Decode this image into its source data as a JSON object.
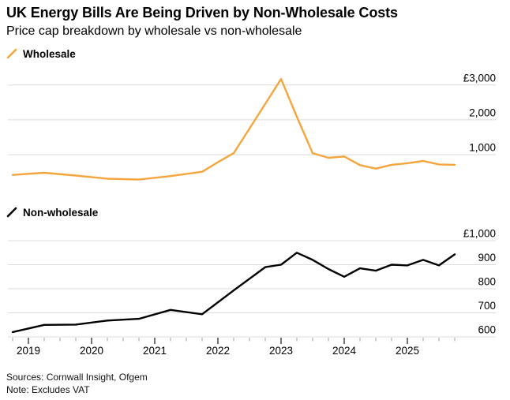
{
  "header": {
    "title": "UK Energy Bills Are Being Driven by Non-Wholesale Costs",
    "subtitle": "Price cap breakdown by wholesale vs non-wholesale"
  },
  "footer": {
    "sources": "Sources: Cornwall Insight, Ofgem",
    "note": "Note: Excludes VAT"
  },
  "colors": {
    "wholesale": "#F6A53D",
    "non_wholesale": "#000000",
    "gridline": "#DCDCDC",
    "tick_minor": "#A0A0A0",
    "tick_major": "#2B2B2B",
    "text": "#000000"
  },
  "chart_data": {
    "type": "line",
    "title": "UK Energy Bills Are Being Driven by Non-Wholesale Costs",
    "subtitle": "Price cap breakdown by wholesale vs non-wholesale",
    "currency": "£",
    "x_axis": {
      "tick_frequency": "quarterly",
      "year_labels": [
        "2019",
        "2020",
        "2021",
        "2022",
        "2023",
        "2024",
        "2025"
      ],
      "range": [
        "2018-10",
        "2025-10"
      ]
    },
    "charts": [
      {
        "name": "Wholesale",
        "legend": "Wholesale",
        "color": "#F6A53D",
        "ylim": [
          0,
          3300
        ],
        "gridlines": [
          {
            "value": 3000,
            "label": "£3,000"
          },
          {
            "value": 2000,
            "label": "2,000"
          },
          {
            "value": 1000,
            "label": "1,000"
          }
        ],
        "points": [
          {
            "date": "2018-10",
            "value": 420
          },
          {
            "date": "2019-04",
            "value": 480
          },
          {
            "date": "2019-10",
            "value": 400
          },
          {
            "date": "2020-04",
            "value": 310
          },
          {
            "date": "2020-10",
            "value": 285
          },
          {
            "date": "2021-04",
            "value": 385
          },
          {
            "date": "2021-10",
            "value": 510
          },
          {
            "date": "2022-01",
            "value": 785
          },
          {
            "date": "2022-04",
            "value": 1045
          },
          {
            "date": "2022-07",
            "value": 1750
          },
          {
            "date": "2022-10",
            "value": 2460
          },
          {
            "date": "2023-01",
            "value": 3175
          },
          {
            "date": "2023-04",
            "value": 2090
          },
          {
            "date": "2023-07",
            "value": 1045
          },
          {
            "date": "2023-10",
            "value": 910
          },
          {
            "date": "2024-01",
            "value": 950
          },
          {
            "date": "2024-04",
            "value": 700
          },
          {
            "date": "2024-07",
            "value": 600
          },
          {
            "date": "2024-10",
            "value": 710
          },
          {
            "date": "2025-01",
            "value": 755
          },
          {
            "date": "2025-04",
            "value": 820
          },
          {
            "date": "2025-07",
            "value": 720
          },
          {
            "date": "2025-10",
            "value": 710
          }
        ]
      },
      {
        "name": "Non-wholesale",
        "legend": "Non-wholesale",
        "color": "#000000",
        "ylim": [
          600,
          1000
        ],
        "gridlines": [
          {
            "value": 1000,
            "label": "£1,000"
          },
          {
            "value": 900,
            "label": "900"
          },
          {
            "value": 800,
            "label": "800"
          },
          {
            "value": 700,
            "label": "700"
          },
          {
            "value": 600,
            "label": "600"
          }
        ],
        "points": [
          {
            "date": "2018-10",
            "value": 620
          },
          {
            "date": "2019-04",
            "value": 650
          },
          {
            "date": "2019-10",
            "value": 651
          },
          {
            "date": "2020-04",
            "value": 668
          },
          {
            "date": "2020-10",
            "value": 675
          },
          {
            "date": "2021-04",
            "value": 712
          },
          {
            "date": "2021-10",
            "value": 694
          },
          {
            "date": "2022-04",
            "value": 793
          },
          {
            "date": "2022-10",
            "value": 890
          },
          {
            "date": "2023-01",
            "value": 900
          },
          {
            "date": "2023-04",
            "value": 950
          },
          {
            "date": "2023-07",
            "value": 920
          },
          {
            "date": "2023-10",
            "value": 882
          },
          {
            "date": "2024-01",
            "value": 850
          },
          {
            "date": "2024-04",
            "value": 885
          },
          {
            "date": "2024-07",
            "value": 875
          },
          {
            "date": "2024-10",
            "value": 900
          },
          {
            "date": "2025-01",
            "value": 897
          },
          {
            "date": "2025-04",
            "value": 920
          },
          {
            "date": "2025-07",
            "value": 897
          },
          {
            "date": "2025-10",
            "value": 943
          }
        ]
      }
    ]
  }
}
